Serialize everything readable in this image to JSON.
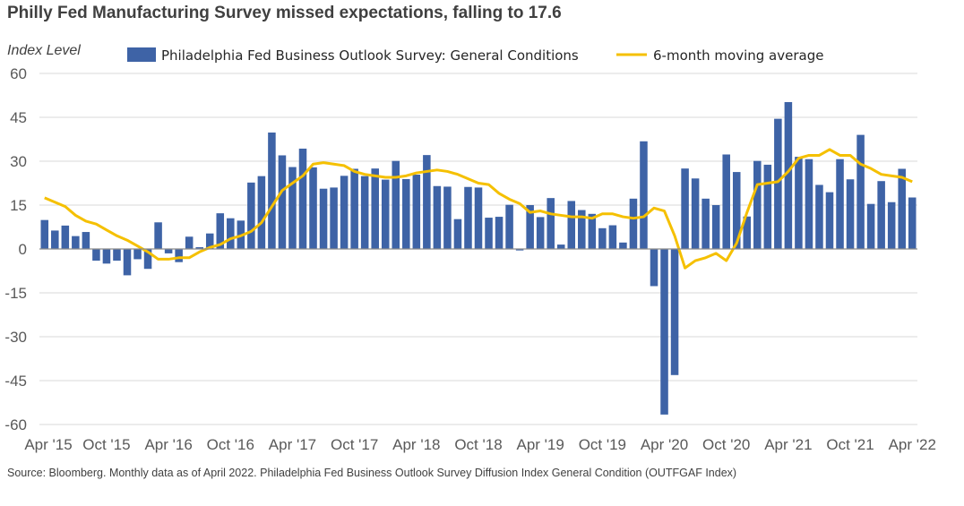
{
  "title": "Philly Fed Manufacturing Survey missed expectations, falling to 17.6",
  "source": "Source: Bloomberg. Monthly data as of April 2022. Philadelphia Fed Business Outlook Survey Diffusion Index General Condition (OUTFGAF Index)",
  "colors": {
    "bar": "#3e63a6",
    "line": "#f5c000",
    "grid": "#d9d9d9",
    "zero": "#8c8c8c"
  },
  "chart_data": {
    "type": "bar",
    "ylabel": "Index Level",
    "ylim": [
      -60,
      60
    ],
    "yticks": [
      60,
      45,
      30,
      15,
      0,
      -15,
      -30,
      -45,
      -60
    ],
    "xtick_labels": [
      "Apr '15",
      "Oct '15",
      "Apr '16",
      "Oct '16",
      "Apr '17",
      "Oct '17",
      "Apr '18",
      "Oct '18",
      "Apr '19",
      "Oct '19",
      "Apr '20",
      "Oct '20",
      "Apr '21",
      "Oct '21",
      "Apr '22"
    ],
    "legend_position": "top",
    "categories": [
      "2015-04",
      "2015-05",
      "2015-06",
      "2015-07",
      "2015-08",
      "2015-09",
      "2015-10",
      "2015-11",
      "2015-12",
      "2016-01",
      "2016-02",
      "2016-03",
      "2016-04",
      "2016-05",
      "2016-06",
      "2016-07",
      "2016-08",
      "2016-09",
      "2016-10",
      "2016-11",
      "2016-12",
      "2017-01",
      "2017-02",
      "2017-03",
      "2017-04",
      "2017-05",
      "2017-06",
      "2017-07",
      "2017-08",
      "2017-09",
      "2017-10",
      "2017-11",
      "2017-12",
      "2018-01",
      "2018-02",
      "2018-03",
      "2018-04",
      "2018-05",
      "2018-06",
      "2018-07",
      "2018-08",
      "2018-09",
      "2018-10",
      "2018-11",
      "2018-12",
      "2019-01",
      "2019-02",
      "2019-03",
      "2019-04",
      "2019-05",
      "2019-06",
      "2019-07",
      "2019-08",
      "2019-09",
      "2019-10",
      "2019-11",
      "2019-12",
      "2020-01",
      "2020-02",
      "2020-03",
      "2020-04",
      "2020-05",
      "2020-06",
      "2020-07",
      "2020-08",
      "2020-09",
      "2020-10",
      "2020-11",
      "2020-12",
      "2021-01",
      "2021-02",
      "2021-03",
      "2021-04",
      "2021-05",
      "2021-06",
      "2021-07",
      "2021-08",
      "2021-09",
      "2021-10",
      "2021-11",
      "2021-12",
      "2022-01",
      "2022-02",
      "2022-03",
      "2022-04"
    ],
    "series": [
      {
        "name": "Philadelphia Fed Business Outlook Survey: General Conditions",
        "type": "bar",
        "values": [
          9.9,
          6.3,
          8.0,
          4.4,
          5.8,
          -4.0,
          -5.0,
          -4.0,
          -9.0,
          -3.5,
          -6.8,
          9.1,
          -1.5,
          -4.5,
          4.2,
          0.6,
          5.3,
          12.2,
          10.5,
          9.7,
          22.7,
          24.9,
          39.8,
          32.0,
          28.0,
          34.3,
          27.9,
          20.6,
          21.0,
          25.0,
          27.4,
          24.9,
          27.5,
          23.7,
          30.1,
          23.9,
          25.4,
          32.1,
          21.5,
          21.3,
          10.2,
          21.2,
          21.0,
          10.7,
          11.0,
          15.1,
          -0.5,
          15.0,
          10.9,
          17.4,
          1.5,
          16.4,
          13.3,
          12.0,
          7.1,
          8.1,
          2.2,
          17.2,
          36.8,
          -12.7,
          -56.6,
          -43.1,
          27.5,
          24.1,
          17.2,
          15.0,
          32.3,
          26.3,
          11.1,
          30.1,
          28.8,
          44.5,
          50.2,
          31.5,
          30.7,
          21.9,
          19.4,
          30.7,
          23.8,
          39.0,
          15.4,
          23.2,
          16.0,
          27.4,
          17.6
        ]
      },
      {
        "name": "6-month moving average",
        "type": "line",
        "values": [
          17.5,
          16.0,
          14.5,
          11.5,
          9.5,
          8.5,
          6.5,
          4.5,
          3.0,
          1.0,
          -1.0,
          -3.5,
          -3.5,
          -3.0,
          -3.0,
          -1.0,
          0.5,
          1.5,
          3.5,
          4.5,
          6.0,
          9.0,
          14.5,
          20.0,
          22.5,
          25.0,
          29.0,
          29.5,
          29.0,
          28.5,
          26.5,
          25.5,
          25.0,
          24.5,
          24.5,
          25.0,
          26.0,
          26.5,
          27.0,
          26.5,
          25.5,
          24.0,
          22.5,
          22.0,
          19.0,
          17.0,
          15.5,
          12.5,
          13.0,
          12.0,
          11.5,
          11.0,
          11.0,
          10.5,
          12.0,
          12.0,
          11.0,
          10.5,
          11.0,
          14.0,
          13.0,
          4.5,
          -6.5,
          -4.0,
          -3.0,
          -1.5,
          -4.0,
          2.0,
          12.5,
          22.0,
          22.5,
          23.0,
          26.5,
          31.0,
          32.0,
          32.0,
          34.0,
          32.0,
          32.0,
          29.0,
          27.5,
          25.5,
          25.0,
          24.5,
          23.0
        ]
      }
    ]
  }
}
